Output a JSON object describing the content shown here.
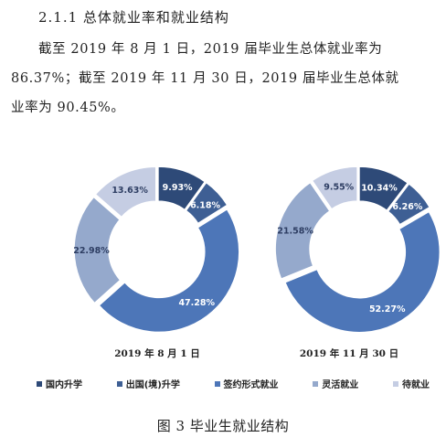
{
  "heading": "2.1.1 总体就业率和就业结构",
  "paragraph": {
    "line1": "截至 2019 年 8 月 1 日，2019 届毕业生总体就业率为",
    "line2": "86.37%；截至 2019 年 11 月 30 日，2019 届毕业生总体就",
    "line3": "业率为 90.45%。"
  },
  "chart_data": [
    {
      "type": "pie",
      "donut": true,
      "title": "2019 年 8 月 1 日",
      "categories": [
        "国内升学",
        "出国(境)升学",
        "签约形式就业",
        "灵活就业",
        "待就业"
      ],
      "values": [
        9.93,
        6.18,
        47.28,
        22.98,
        13.63
      ],
      "labels": [
        "9.93%",
        "6.18%",
        "47.28%",
        "22.98%",
        "13.63%"
      ]
    },
    {
      "type": "pie",
      "donut": true,
      "title": "2019 年 11 月 30 日",
      "categories": [
        "国内升学",
        "出国(境)升学",
        "签约形式就业",
        "灵活就业",
        "待就业"
      ],
      "values": [
        10.34,
        6.26,
        52.27,
        21.58,
        9.55
      ],
      "labels": [
        "10.34%",
        "6.26%",
        "52.27%",
        "21.58%",
        "9.55%"
      ]
    }
  ],
  "legend": [
    {
      "label": "国内升学",
      "color": "#2e4a78"
    },
    {
      "label": "出国(境)升学",
      "color": "#3e5f94"
    },
    {
      "label": "签约形式就业",
      "color": "#4d76b8"
    },
    {
      "label": "灵活就业",
      "color": "#95a9cc"
    },
    {
      "label": "待就业",
      "color": "#c5cde3"
    }
  ],
  "label_colors": [
    "#ffffff",
    "#ffffff",
    "#ffffff",
    "#2e3e63",
    "#2e3e63"
  ],
  "figure_caption": "图 3 毕业生就业结构"
}
